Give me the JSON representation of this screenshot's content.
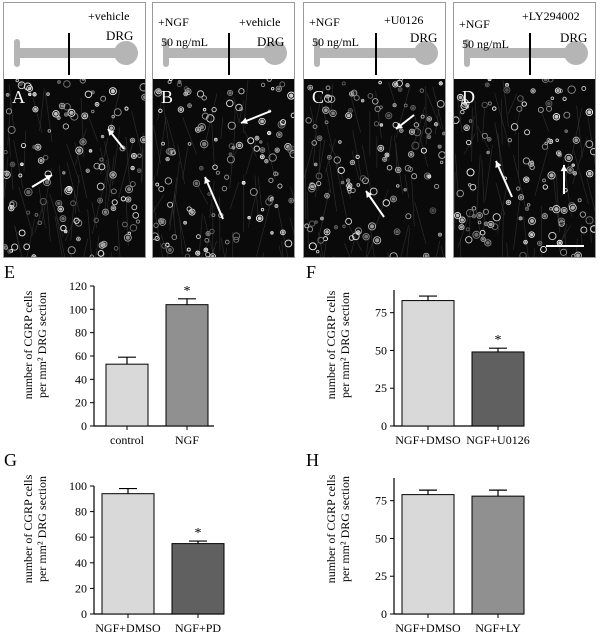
{
  "micrographs": [
    {
      "letter": "A",
      "left_label": "",
      "concentration": "",
      "right_label": "+vehicle",
      "target": "DRG",
      "has_scale_bar": false
    },
    {
      "letter": "B",
      "left_label": "+NGF",
      "concentration": "50 ng/mL",
      "right_label": "+vehicle",
      "target": "DRG",
      "has_scale_bar": false
    },
    {
      "letter": "C",
      "left_label": "+NGF",
      "concentration": "50 ng/mL",
      "right_label": "+U0126",
      "target": "DRG",
      "has_scale_bar": false
    },
    {
      "letter": "D",
      "left_label": "+NGF",
      "concentration": "50 ng/mL",
      "right_label": "+LY294002",
      "target": "DRG",
      "has_scale_bar": true
    }
  ],
  "chart_data": [
    {
      "id": "E",
      "type": "bar",
      "categories": [
        "control",
        "NGF"
      ],
      "values": [
        53,
        104
      ],
      "errors": [
        6,
        5
      ],
      "bar_colors": [
        "#d9d9d9",
        "#909090"
      ],
      "significant": [
        false,
        true
      ],
      "ylim": [
        0,
        120
      ],
      "yticks": [
        0,
        20,
        40,
        60,
        80,
        100,
        120
      ],
      "ylabel_line1": "number of CGRP cells",
      "ylabel_line2": "per mm² DRG section"
    },
    {
      "id": "F",
      "type": "bar",
      "categories": [
        "NGF+DMSO",
        "NGF+U0126"
      ],
      "values": [
        83,
        49
      ],
      "errors": [
        3,
        2.5
      ],
      "bar_colors": [
        "#d9d9d9",
        "#606060"
      ],
      "significant": [
        false,
        true
      ],
      "ylim": [
        0,
        90
      ],
      "yticks": [
        0,
        25,
        50,
        75
      ],
      "ylabel_line1": "number of CGRP cells",
      "ylabel_line2": "per mm² DRG section"
    },
    {
      "id": "G",
      "type": "bar",
      "categories": [
        "NGF+DMSO",
        "NGF+PD"
      ],
      "values": [
        94,
        55
      ],
      "errors": [
        4,
        2
      ],
      "bar_colors": [
        "#d9d9d9",
        "#606060"
      ],
      "significant": [
        false,
        true
      ],
      "ylim": [
        0,
        100
      ],
      "yticks": [
        0,
        20,
        40,
        60,
        80,
        100
      ],
      "ylabel_line1": "number of CGRP cells",
      "ylabel_line2": "per mm² DRG section"
    },
    {
      "id": "H",
      "type": "bar",
      "categories": [
        "NGF+DMSO",
        "NGF+LY"
      ],
      "values": [
        79,
        78
      ],
      "errors": [
        3,
        4
      ],
      "bar_colors": [
        "#d9d9d9",
        "#909090"
      ],
      "significant": [
        false,
        false
      ],
      "ylim": [
        0,
        90
      ],
      "yticks": [
        0,
        25,
        50,
        75
      ],
      "ylabel_line1": "number of CGRP cells",
      "ylabel_line2": "per mm² DRG section"
    }
  ],
  "significance_marker": "*"
}
